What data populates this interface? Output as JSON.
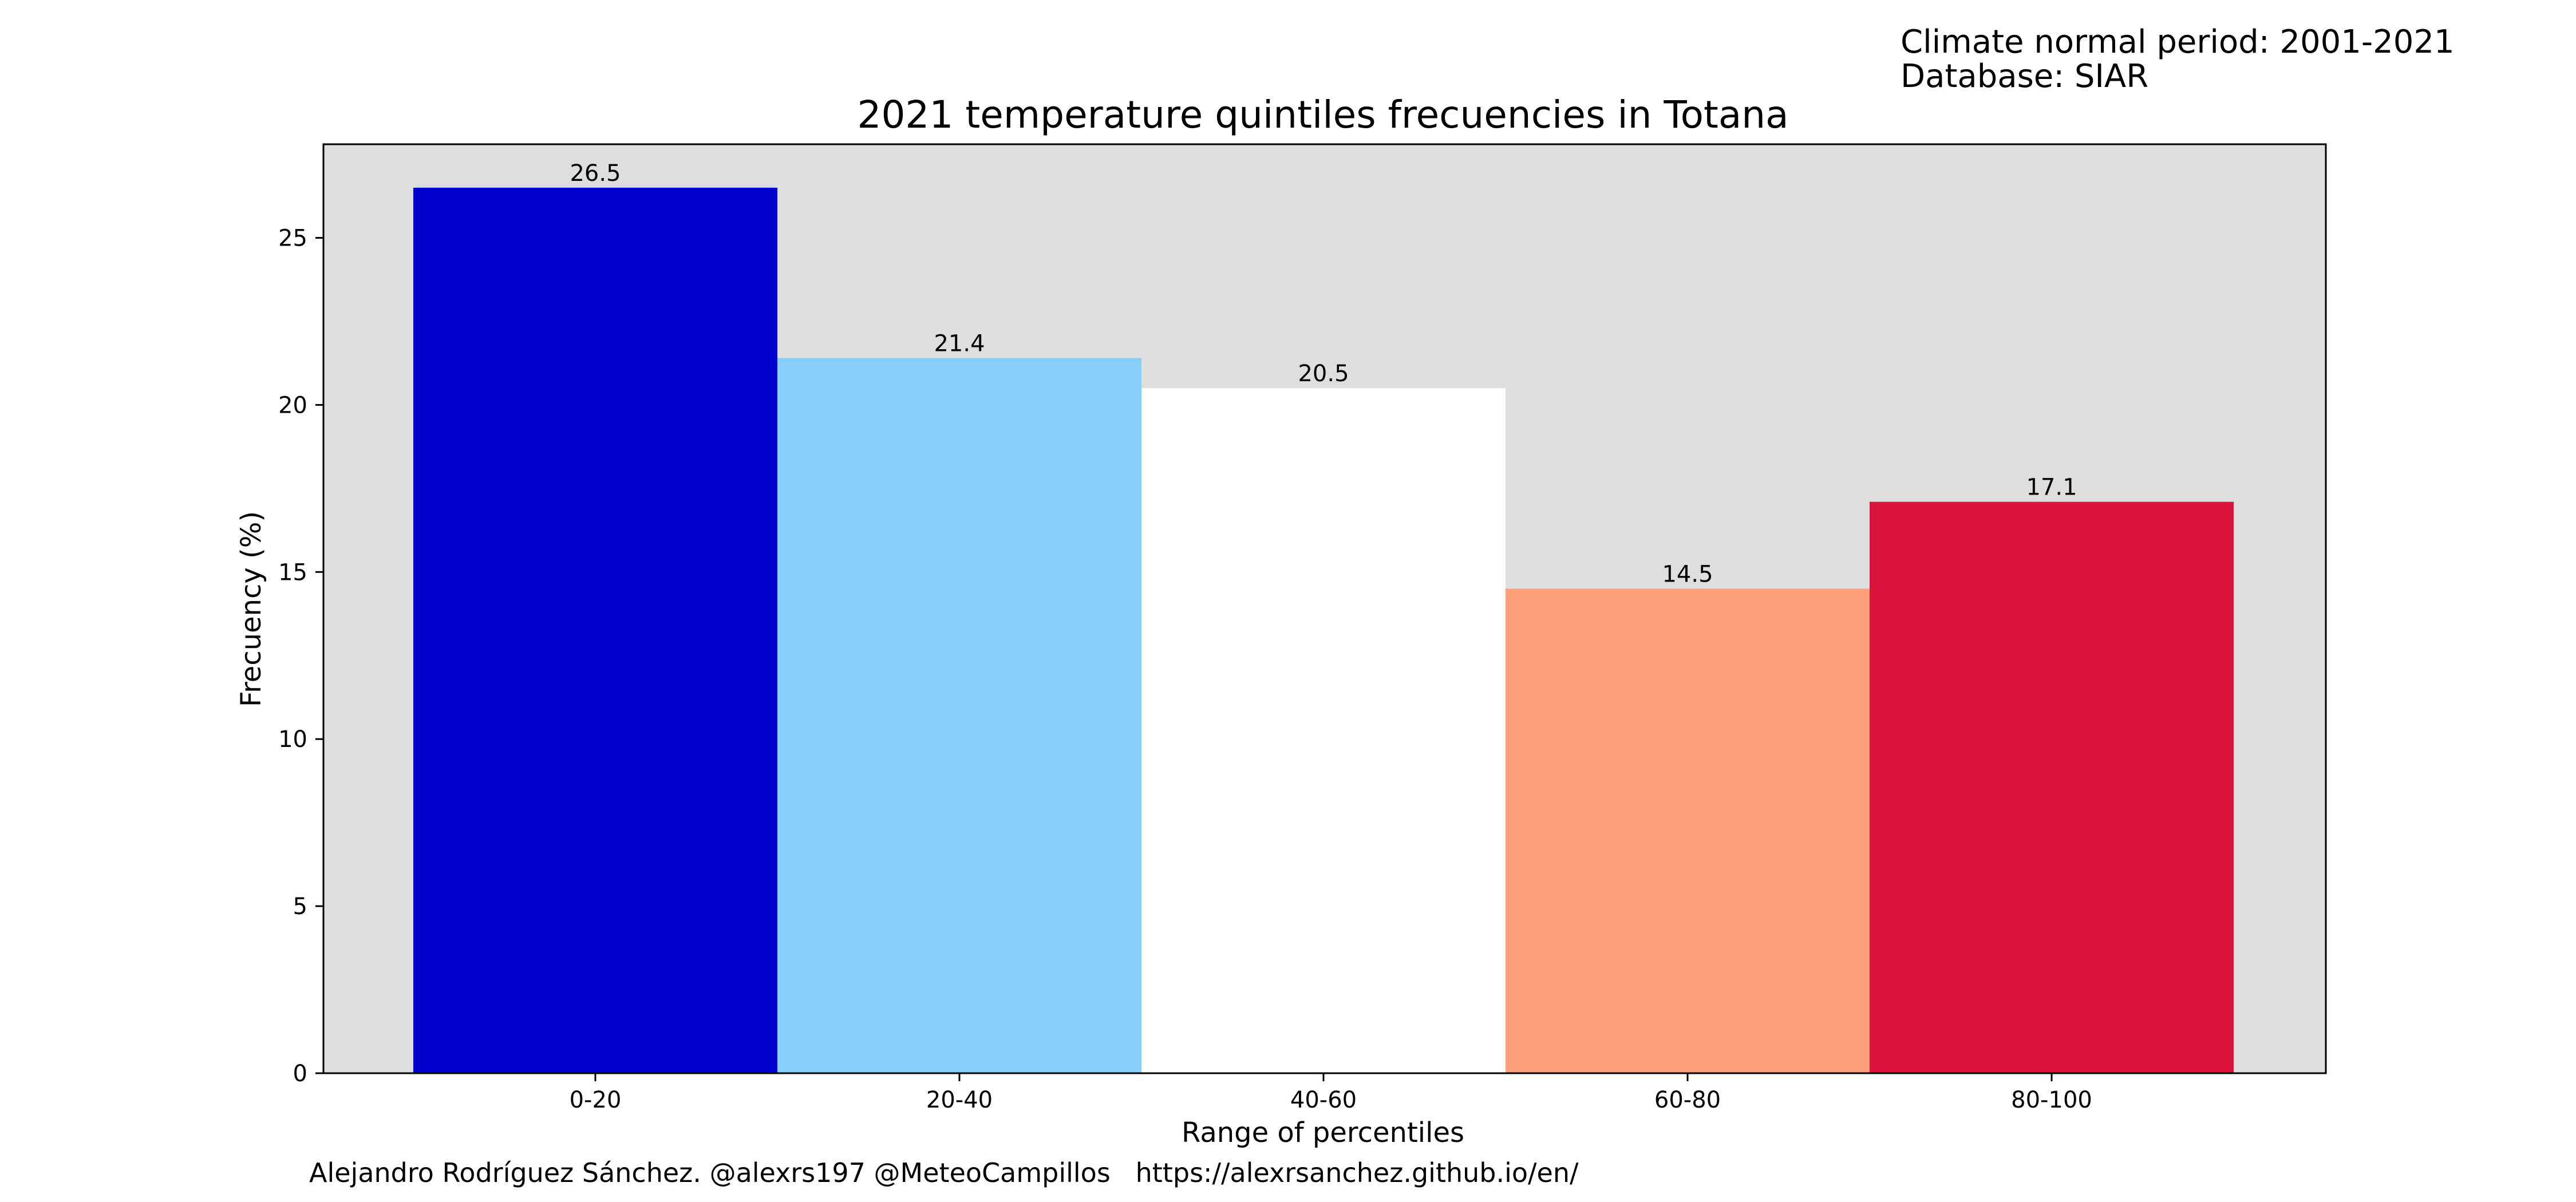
{
  "header": {
    "climate_note": "Climate normal period: 2001-2021",
    "database_note": "Database: SIAR"
  },
  "footer": {
    "credit": "Alejandro Rodríguez Sánchez. @alexrs197 @MeteoCampillos   https://alexrsanchez.github.io/en/"
  },
  "colors": {
    "plot_background": "#dedede",
    "axes_edge": "#000000"
  },
  "chart_data": {
    "type": "bar",
    "title": "2021 temperature quintiles frecuencies in Totana",
    "xlabel": "Range of percentiles",
    "ylabel": "Frecuency (%)",
    "categories": [
      "0-20",
      "20-40",
      "40-60",
      "60-80",
      "80-100"
    ],
    "values": [
      26.5,
      21.4,
      20.5,
      14.5,
      17.1
    ],
    "value_labels": [
      "26.5",
      "21.4",
      "20.5",
      "14.5",
      "17.1"
    ],
    "bar_colors": [
      "#0000cd",
      "#87cefa",
      "#ffffff",
      "#ffa07a",
      "#dc143c"
    ],
    "ylim": [
      0,
      27.8
    ],
    "yticks": [
      0,
      5,
      10,
      15,
      20,
      25
    ],
    "grid": false,
    "legend": "none"
  }
}
